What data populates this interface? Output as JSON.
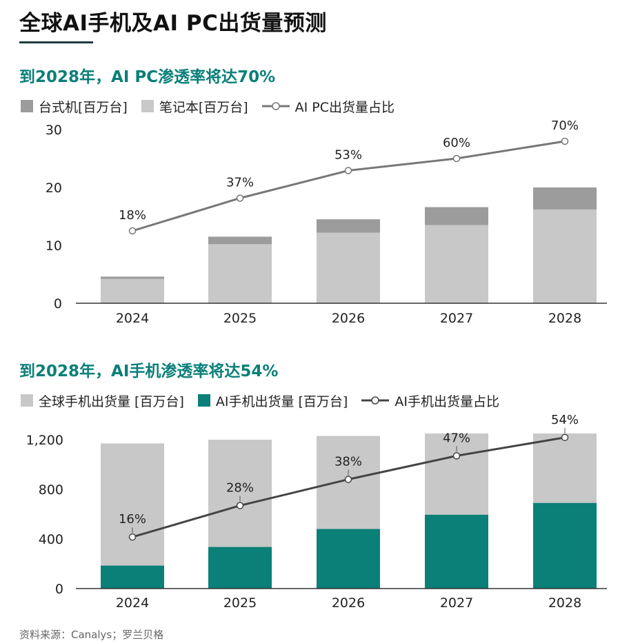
{
  "title": "全球AI手机及AI PC出货量预测",
  "source": "资料来源：Canalys；罗兰贝格",
  "colors": {
    "teal": "#0a8078",
    "dark_gray": "#9c9c9c",
    "light_gray": "#c8c8c8",
    "line1": "#777777",
    "line2": "#444444"
  },
  "chart_data": [
    {
      "type": "bar",
      "stacked": true,
      "title": "到2028年，AI PC渗透率将达70%",
      "categories": [
        "2024",
        "2025",
        "2026",
        "2027",
        "2028"
      ],
      "series": [
        {
          "name": "笔记本[百万台]",
          "values": [
            4.2,
            10.2,
            12.2,
            13.5,
            16.2
          ]
        },
        {
          "name": "台式机[百万台]",
          "values": [
            0.4,
            1.3,
            2.3,
            3.1,
            3.8
          ]
        }
      ],
      "line_series": {
        "name": "AI PC出货量占比",
        "values": [
          18,
          37,
          53,
          60,
          70
        ],
        "labels": [
          "18%",
          "37%",
          "53%",
          "60%",
          "70%"
        ]
      },
      "legend": [
        "台式机[百万台]",
        "笔记本[百万台]",
        "AI PC出货量占比"
      ],
      "yticks": [
        "0",
        "10",
        "20",
        "30"
      ],
      "ylim": [
        0,
        30
      ]
    },
    {
      "type": "bar",
      "stacked": false,
      "title": "到2028年，AI手机渗透率将达54%",
      "categories": [
        "2024",
        "2025",
        "2026",
        "2027",
        "2028"
      ],
      "series": [
        {
          "name": "全球手机出货量 [百万台]",
          "values": [
            1170,
            1200,
            1230,
            1250,
            1250
          ]
        },
        {
          "name": "AI手机出货量 [百万台]",
          "values": [
            185,
            335,
            480,
            595,
            690
          ]
        }
      ],
      "line_series": {
        "name": "AI手机出货量占比",
        "values": [
          16,
          28,
          38,
          47,
          54
        ],
        "labels": [
          "16%",
          "28%",
          "38%",
          "47%",
          "54%"
        ]
      },
      "legend": [
        "全球手机出货量 [百万台]",
        "AI手机出货量 [百万台]",
        "AI手机出货量占比"
      ],
      "yticks": [
        "0",
        "400",
        "800",
        "1,200"
      ],
      "ylim": [
        0,
        1200
      ]
    }
  ]
}
